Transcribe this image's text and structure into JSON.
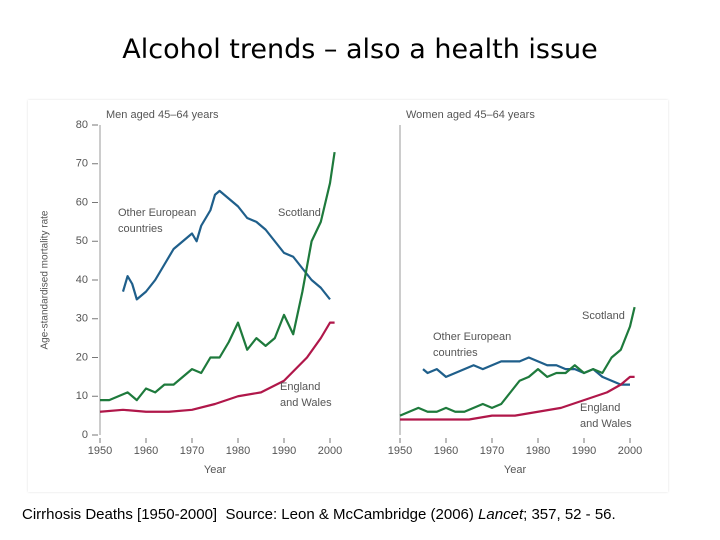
{
  "title": "Alcohol trends – also a health issue",
  "caption": {
    "text": "Cirrhosis Deaths [1950-2000]  Source: Leon & McCambridge (2006) ",
    "italic": "Lancet",
    "tail": "; 357, 52 - 56."
  },
  "chart_data": [
    {
      "type": "line",
      "title": "Men aged 45–64 years",
      "x_label": "Year",
      "y_label": "Age-standardised mortality rate",
      "xlim": [
        1950,
        2000
      ],
      "xticks": [
        1950,
        1960,
        1970,
        1980,
        1990,
        2000
      ],
      "ylim": [
        0,
        80
      ],
      "yticks": [
        0,
        10,
        20,
        30,
        40,
        50,
        60,
        70,
        80
      ],
      "series": [
        {
          "name": "Other European countries",
          "color": "#1f5f8b",
          "x": [
            1955,
            1956,
            1957,
            1958,
            1960,
            1962,
            1964,
            1966,
            1968,
            1970,
            1971,
            1972,
            1974,
            1975,
            1976,
            1978,
            1980,
            1982,
            1984,
            1986,
            1988,
            1990,
            1992,
            1994,
            1996,
            1998,
            2000
          ],
          "values": [
            37,
            41,
            39,
            35,
            37,
            40,
            44,
            48,
            50,
            52,
            50,
            54,
            58,
            62,
            63,
            61,
            59,
            56,
            55,
            53,
            50,
            47,
            46,
            43,
            40,
            38,
            35
          ]
        },
        {
          "name": "Scotland",
          "color": "#1e7a3c",
          "x": [
            1950,
            1952,
            1954,
            1956,
            1958,
            1960,
            1962,
            1964,
            1966,
            1968,
            1970,
            1972,
            1974,
            1976,
            1978,
            1980,
            1982,
            1984,
            1986,
            1988,
            1990,
            1992,
            1994,
            1996,
            1998,
            2000,
            2001
          ],
          "values": [
            9,
            9,
            10,
            11,
            9,
            12,
            11,
            13,
            13,
            15,
            17,
            16,
            20,
            20,
            24,
            29,
            22,
            25,
            23,
            25,
            31,
            26,
            37,
            50,
            55,
            65,
            73
          ]
        },
        {
          "name": "England and Wales",
          "color": "#b0174a",
          "x": [
            1950,
            1955,
            1960,
            1965,
            1970,
            1975,
            1980,
            1985,
            1990,
            1995,
            1998,
            2000,
            2001
          ],
          "values": [
            6,
            6.5,
            6,
            6,
            6.5,
            8,
            10,
            11,
            14,
            20,
            25,
            29,
            29
          ]
        }
      ],
      "annotations": [
        [
          "Other European",
          "countries"
        ],
        [
          "Scotland"
        ],
        [
          "England",
          "and Wales"
        ]
      ]
    },
    {
      "type": "line",
      "title": "Women aged 45–64 years",
      "x_label": "Year",
      "xlim": [
        1950,
        2000
      ],
      "xticks": [
        1950,
        1960,
        1970,
        1980,
        1990,
        2000
      ],
      "ylim": [
        0,
        80
      ],
      "series": [
        {
          "name": "Other European countries",
          "color": "#1f5f8b",
          "x": [
            1955,
            1956,
            1958,
            1960,
            1962,
            1964,
            1966,
            1968,
            1970,
            1972,
            1974,
            1976,
            1978,
            1980,
            1982,
            1984,
            1986,
            1988,
            1990,
            1992,
            1994,
            1996,
            1998,
            2000
          ],
          "values": [
            17,
            16,
            17,
            15,
            16,
            17,
            18,
            17,
            18,
            19,
            19,
            19,
            20,
            19,
            18,
            18,
            17,
            17,
            16,
            17,
            15,
            14,
            13,
            13
          ]
        },
        {
          "name": "Scotland",
          "color": "#1e7a3c",
          "x": [
            1950,
            1952,
            1954,
            1956,
            1958,
            1960,
            1962,
            1964,
            1966,
            1968,
            1970,
            1972,
            1974,
            1976,
            1978,
            1980,
            1982,
            1984,
            1986,
            1988,
            1990,
            1992,
            1994,
            1996,
            1998,
            2000,
            2001
          ],
          "values": [
            5,
            6,
            7,
            6,
            6,
            7,
            6,
            6,
            7,
            8,
            7,
            8,
            11,
            14,
            15,
            17,
            15,
            16,
            16,
            18,
            16,
            17,
            16,
            20,
            22,
            28,
            33
          ]
        },
        {
          "name": "England and Wales",
          "color": "#b0174a",
          "x": [
            1950,
            1955,
            1960,
            1965,
            1970,
            1975,
            1980,
            1985,
            1990,
            1995,
            1998,
            2000,
            2001
          ],
          "values": [
            4,
            4,
            4,
            4,
            5,
            5,
            6,
            7,
            9,
            11,
            13,
            15,
            15
          ]
        }
      ],
      "annotations": [
        [
          "Other European",
          "countries"
        ],
        [
          "Scotland"
        ],
        [
          "England",
          "and Wales"
        ]
      ]
    }
  ]
}
